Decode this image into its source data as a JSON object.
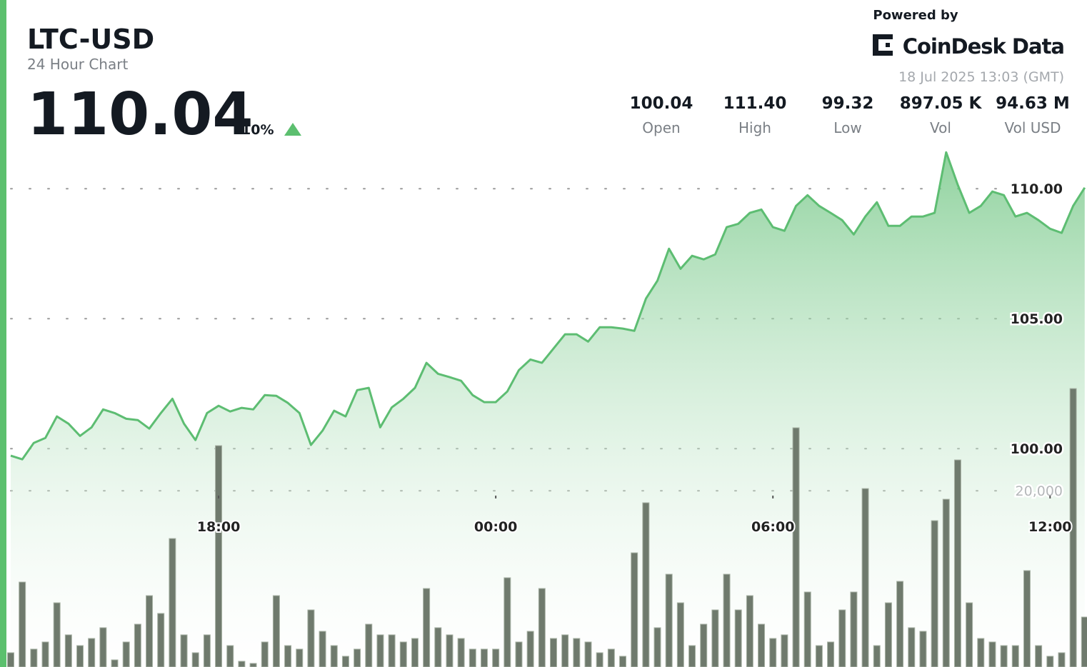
{
  "header": {
    "title": "LTC-USD",
    "subtitle": "24 Hour Chart",
    "price": "110.04",
    "change": "10%",
    "powered_by": "Powered by",
    "brand": "CoinDesk Data",
    "timestamp": "18 Jul 2025 13:03 (GMT)",
    "stats": [
      {
        "value": "100.04",
        "label": "Open"
      },
      {
        "value": "111.40",
        "label": "High"
      },
      {
        "value": "99.32",
        "label": "Low"
      },
      {
        "value": "897.05 K",
        "label": "Vol"
      },
      {
        "value": "94.63 M",
        "label": "Vol USD"
      }
    ]
  },
  "chart_data": {
    "type": "area",
    "x": [
      "13:30",
      "13:45",
      "14:00",
      "14:15",
      "14:30",
      "14:45",
      "15:00",
      "15:15",
      "15:30",
      "15:45",
      "16:00",
      "16:15",
      "16:30",
      "16:45",
      "17:00",
      "17:15",
      "17:30",
      "17:45",
      "18:00",
      "18:15",
      "18:30",
      "18:45",
      "19:00",
      "19:15",
      "19:30",
      "19:45",
      "20:00",
      "20:15",
      "20:30",
      "20:45",
      "21:00",
      "21:15",
      "21:30",
      "21:45",
      "22:00",
      "22:15",
      "22:30",
      "22:45",
      "23:00",
      "23:15",
      "23:30",
      "23:45",
      "00:00",
      "00:15",
      "00:30",
      "00:45",
      "01:00",
      "01:15",
      "01:30",
      "01:45",
      "02:00",
      "02:15",
      "02:30",
      "02:45",
      "03:00",
      "03:15",
      "03:30",
      "03:45",
      "04:00",
      "04:15",
      "04:30",
      "04:45",
      "05:00",
      "05:15",
      "05:30",
      "05:45",
      "06:00",
      "06:15",
      "06:30",
      "06:45",
      "07:00",
      "07:15",
      "07:30",
      "07:45",
      "08:00",
      "08:15",
      "08:30",
      "08:45",
      "09:00",
      "09:15",
      "09:30",
      "09:45",
      "10:00",
      "10:15",
      "10:30",
      "10:45",
      "11:00",
      "11:15",
      "11:30",
      "11:45",
      "12:00",
      "12:15",
      "12:30",
      "12:45"
    ],
    "xticks": [
      "18:00",
      "00:00",
      "06:00",
      "12:00"
    ],
    "series": [
      {
        "type": "area",
        "color": "#5dbd72",
        "values": [
          99.73,
          99.59,
          100.22,
          100.41,
          101.24,
          100.96,
          100.49,
          100.82,
          101.51,
          101.37,
          101.15,
          101.1,
          100.77,
          101.37,
          101.92,
          100.96,
          100.33,
          101.37,
          101.65,
          101.43,
          101.57,
          101.51,
          102.06,
          102.03,
          101.76,
          101.37,
          100.14,
          100.69,
          101.46,
          101.24,
          102.25,
          102.34,
          100.82,
          101.59,
          101.92,
          102.34,
          103.3,
          102.88,
          102.75,
          102.61,
          102.06,
          101.79,
          101.79,
          102.2,
          103.02,
          103.43,
          103.3,
          103.85,
          104.4,
          104.4,
          104.12,
          104.67,
          104.67,
          104.62,
          104.53,
          105.77,
          106.46,
          107.69,
          106.92,
          107.42,
          107.28,
          107.47,
          108.52,
          108.65,
          109.07,
          109.2,
          108.52,
          108.38,
          109.34,
          109.75,
          109.34,
          109.07,
          108.79,
          108.24,
          108.93,
          109.48,
          108.57,
          108.57,
          108.93,
          108.93,
          109.07,
          111.4,
          110.16,
          109.07,
          109.34,
          109.89,
          109.75,
          108.93,
          109.07,
          108.79,
          108.46,
          108.3,
          109.34,
          110.04
        ]
      },
      {
        "type": "bar",
        "axis": "y2",
        "color": "#6f7a6d",
        "values": [
          1620,
          9640,
          2030,
          2840,
          7290,
          3650,
          2430,
          3240,
          4460,
          810,
          2840,
          4860,
          8100,
          6080,
          14580,
          3650,
          1620,
          3650,
          25120,
          2430,
          650,
          410,
          2840,
          8100,
          2430,
          2030,
          6480,
          4050,
          2430,
          1220,
          2030,
          4860,
          3650,
          3650,
          2840,
          3240,
          8910,
          4460,
          3650,
          3240,
          2030,
          2030,
          2030,
          10130,
          2840,
          4050,
          8910,
          3240,
          3650,
          3240,
          2840,
          1620,
          2030,
          1220,
          12960,
          18640,
          4460,
          10530,
          7290,
          2430,
          4860,
          6480,
          10530,
          6480,
          8100,
          4860,
          3240,
          3650,
          27150,
          8510,
          2430,
          2840,
          6480,
          8510,
          20250,
          2430,
          7290,
          9720,
          4460,
          4050,
          16610,
          19040,
          23500,
          7290,
          3240,
          2840,
          2430,
          2430,
          10940,
          2430,
          1220,
          1620,
          31600,
          5670
        ]
      }
    ],
    "ylim": [
      91.6,
      111.6
    ],
    "yticks": [
      {
        "value": 100,
        "label": "100.00"
      },
      {
        "value": 105,
        "label": "105.00"
      },
      {
        "value": 110,
        "label": "110.00"
      }
    ],
    "y2lim": [
      0,
      59000
    ],
    "y2ticks": [
      {
        "value": 20000,
        "label": "20,000"
      }
    ],
    "grid": true
  }
}
